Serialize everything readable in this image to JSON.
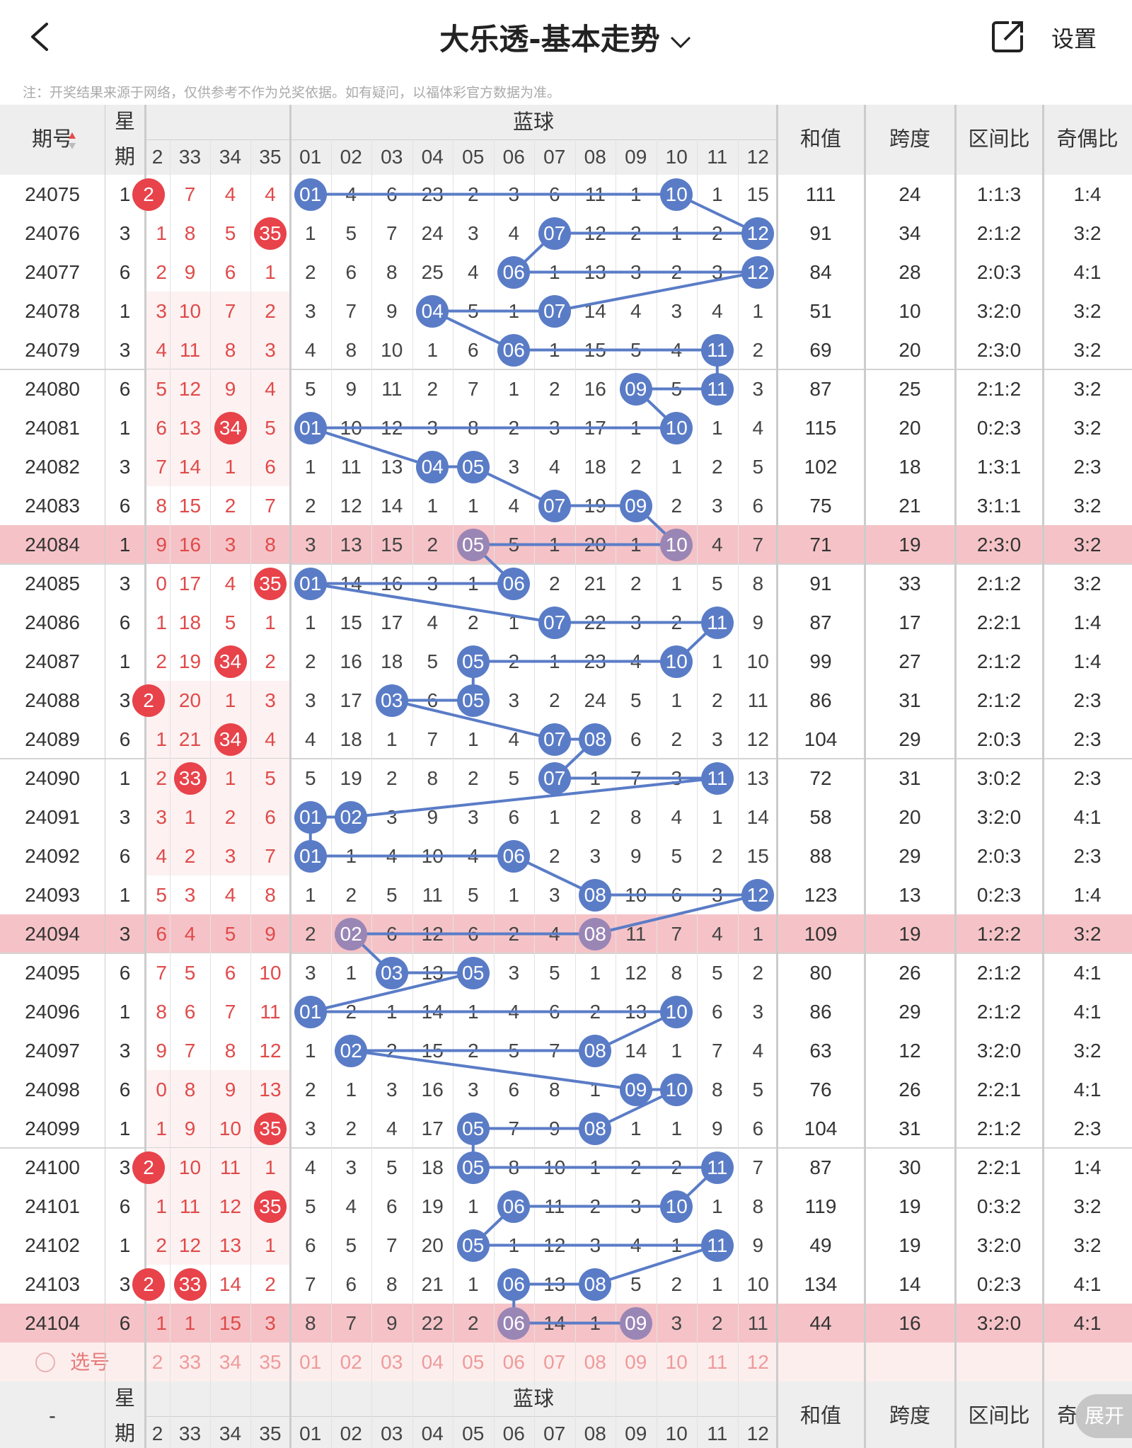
{
  "header": {
    "title": "大乐透-基本走势",
    "settings": "设置"
  },
  "notice": "注：开奖结果来源于网络，仅供参考不作为兑奖依据。如有疑问，以福体彩官方数据为准。",
  "columns": {
    "period": "期号",
    "week_top": "星",
    "week_bottom": "期",
    "blue": "蓝球",
    "sum": "和值",
    "span": "跨度",
    "zone": "区间比",
    "oddeven": "奇偶比",
    "oddeven_short": "奇",
    "front_nums": [
      "2",
      "33",
      "34",
      "35"
    ],
    "blue_nums": [
      "01",
      "02",
      "03",
      "04",
      "05",
      "06",
      "07",
      "08",
      "09",
      "10",
      "11",
      "12"
    ],
    "footer_period": "-"
  },
  "select_label": "选号",
  "expand_label": "展开",
  "colors": {
    "blue_ball": "#5a7cc7",
    "red_ball": "#e8424a",
    "red_text": "#e04a4a",
    "highlight_row": "#f5c3c7",
    "header_bg": "#eeeeee"
  },
  "rows": [
    {
      "p": "24075",
      "w": "1",
      "f": [
        "2",
        "7",
        "4",
        "4"
      ],
      "fh": [
        0
      ],
      "b": [
        "01",
        "4",
        "6",
        "23",
        "2",
        "3",
        "6",
        "11",
        "1",
        "10",
        "1",
        "15"
      ],
      "bh": [
        0,
        9
      ],
      "s": "111",
      "sp": "24",
      "z": "1:1:3",
      "o": "1:4"
    },
    {
      "p": "24076",
      "w": "3",
      "f": [
        "1",
        "8",
        "5",
        "35"
      ],
      "fh": [
        3
      ],
      "b": [
        "1",
        "5",
        "7",
        "24",
        "3",
        "4",
        "07",
        "12",
        "2",
        "1",
        "2",
        "12"
      ],
      "bh": [
        6,
        11
      ],
      "s": "91",
      "sp": "34",
      "z": "2:1:2",
      "o": "3:2"
    },
    {
      "p": "24077",
      "w": "6",
      "f": [
        "2",
        "9",
        "6",
        "1"
      ],
      "fh": [],
      "b": [
        "2",
        "6",
        "8",
        "25",
        "4",
        "06",
        "1",
        "13",
        "3",
        "2",
        "3",
        "12"
      ],
      "bh": [
        5,
        11
      ],
      "s": "84",
      "sp": "28",
      "z": "2:0:3",
      "o": "4:1"
    },
    {
      "p": "24078",
      "w": "1",
      "f": [
        "3",
        "10",
        "7",
        "2"
      ],
      "fh": [],
      "b": [
        "3",
        "7",
        "9",
        "04",
        "5",
        "1",
        "07",
        "14",
        "4",
        "3",
        "4",
        "1"
      ],
      "bh": [
        3,
        6
      ],
      "s": "51",
      "sp": "10",
      "z": "3:2:0",
      "o": "3:2"
    },
    {
      "p": "24079",
      "w": "3",
      "f": [
        "4",
        "11",
        "8",
        "3"
      ],
      "fh": [],
      "b": [
        "4",
        "8",
        "10",
        "1",
        "6",
        "06",
        "1",
        "15",
        "5",
        "4",
        "11",
        "2"
      ],
      "bh": [
        5,
        10
      ],
      "s": "69",
      "sp": "20",
      "z": "2:3:0",
      "o": "3:2"
    },
    {
      "p": "24080",
      "w": "6",
      "f": [
        "5",
        "12",
        "9",
        "4"
      ],
      "fh": [],
      "b": [
        "5",
        "9",
        "11",
        "2",
        "7",
        "1",
        "2",
        "16",
        "09",
        "5",
        "11",
        "3"
      ],
      "bh": [
        8,
        10
      ],
      "s": "87",
      "sp": "25",
      "z": "2:1:2",
      "o": "3:2"
    },
    {
      "p": "24081",
      "w": "1",
      "f": [
        "6",
        "13",
        "34",
        "5"
      ],
      "fh": [
        2
      ],
      "b": [
        "01",
        "10",
        "12",
        "3",
        "8",
        "2",
        "3",
        "17",
        "1",
        "10",
        "1",
        "4"
      ],
      "bh": [
        0,
        9
      ],
      "s": "115",
      "sp": "20",
      "z": "0:2:3",
      "o": "3:2"
    },
    {
      "p": "24082",
      "w": "3",
      "f": [
        "7",
        "14",
        "1",
        "6"
      ],
      "fh": [],
      "b": [
        "1",
        "11",
        "13",
        "04",
        "05",
        "3",
        "4",
        "18",
        "2",
        "1",
        "2",
        "5"
      ],
      "bh": [
        3,
        4
      ],
      "s": "102",
      "sp": "18",
      "z": "1:3:1",
      "o": "2:3"
    },
    {
      "p": "24083",
      "w": "6",
      "f": [
        "8",
        "15",
        "2",
        "7"
      ],
      "fh": [],
      "b": [
        "2",
        "12",
        "14",
        "1",
        "1",
        "4",
        "07",
        "19",
        "09",
        "2",
        "3",
        "6"
      ],
      "bh": [
        6,
        8
      ],
      "s": "75",
      "sp": "21",
      "z": "3:1:1",
      "o": "3:2"
    },
    {
      "p": "24084",
      "w": "1",
      "f": [
        "9",
        "16",
        "3",
        "8"
      ],
      "fh": [],
      "b": [
        "3",
        "13",
        "15",
        "2",
        "05",
        "5",
        "1",
        "20",
        "1",
        "10",
        "4",
        "7"
      ],
      "bh": [
        4,
        9
      ],
      "s": "71",
      "sp": "19",
      "z": "2:3:0",
      "o": "3:2"
    },
    {
      "p": "24085",
      "w": "3",
      "f": [
        "0",
        "17",
        "4",
        "35"
      ],
      "fh": [
        3
      ],
      "b": [
        "01",
        "14",
        "16",
        "3",
        "1",
        "06",
        "2",
        "21",
        "2",
        "1",
        "5",
        "8"
      ],
      "bh": [
        0,
        5
      ],
      "s": "91",
      "sp": "33",
      "z": "2:1:2",
      "o": "3:2"
    },
    {
      "p": "24086",
      "w": "6",
      "f": [
        "1",
        "18",
        "5",
        "1"
      ],
      "fh": [],
      "b": [
        "1",
        "15",
        "17",
        "4",
        "2",
        "1",
        "07",
        "22",
        "3",
        "2",
        "11",
        "9"
      ],
      "bh": [
        6,
        10
      ],
      "s": "87",
      "sp": "17",
      "z": "2:2:1",
      "o": "1:4"
    },
    {
      "p": "24087",
      "w": "1",
      "f": [
        "2",
        "19",
        "34",
        "2"
      ],
      "fh": [
        2
      ],
      "b": [
        "2",
        "16",
        "18",
        "5",
        "05",
        "2",
        "1",
        "23",
        "4",
        "10",
        "1",
        "10"
      ],
      "bh": [
        4,
        9
      ],
      "s": "99",
      "sp": "27",
      "z": "2:1:2",
      "o": "1:4"
    },
    {
      "p": "24088",
      "w": "3",
      "f": [
        "2",
        "20",
        "1",
        "3"
      ],
      "fh": [
        0
      ],
      "b": [
        "3",
        "17",
        "03",
        "6",
        "05",
        "3",
        "2",
        "24",
        "5",
        "1",
        "2",
        "11"
      ],
      "bh": [
        2,
        4
      ],
      "s": "86",
      "sp": "31",
      "z": "2:1:2",
      "o": "2:3"
    },
    {
      "p": "24089",
      "w": "6",
      "f": [
        "1",
        "21",
        "34",
        "4"
      ],
      "fh": [
        2
      ],
      "b": [
        "4",
        "18",
        "1",
        "7",
        "1",
        "4",
        "07",
        "08",
        "6",
        "2",
        "3",
        "12"
      ],
      "bh": [
        6,
        7
      ],
      "s": "104",
      "sp": "29",
      "z": "2:0:3",
      "o": "2:3"
    },
    {
      "p": "24090",
      "w": "1",
      "f": [
        "2",
        "33",
        "1",
        "5"
      ],
      "fh": [
        1
      ],
      "b": [
        "5",
        "19",
        "2",
        "8",
        "2",
        "5",
        "07",
        "1",
        "7",
        "3",
        "11",
        "13"
      ],
      "bh": [
        6,
        10
      ],
      "s": "72",
      "sp": "31",
      "z": "3:0:2",
      "o": "2:3"
    },
    {
      "p": "24091",
      "w": "3",
      "f": [
        "3",
        "1",
        "2",
        "6"
      ],
      "fh": [],
      "b": [
        "01",
        "02",
        "3",
        "9",
        "3",
        "6",
        "1",
        "2",
        "8",
        "4",
        "1",
        "14"
      ],
      "bh": [
        0,
        1
      ],
      "s": "58",
      "sp": "20",
      "z": "3:2:0",
      "o": "4:1"
    },
    {
      "p": "24092",
      "w": "6",
      "f": [
        "4",
        "2",
        "3",
        "7"
      ],
      "fh": [],
      "b": [
        "01",
        "1",
        "4",
        "10",
        "4",
        "06",
        "2",
        "3",
        "9",
        "5",
        "2",
        "15"
      ],
      "bh": [
        0,
        5
      ],
      "s": "88",
      "sp": "29",
      "z": "2:0:3",
      "o": "2:3"
    },
    {
      "p": "24093",
      "w": "1",
      "f": [
        "5",
        "3",
        "4",
        "8"
      ],
      "fh": [],
      "b": [
        "1",
        "2",
        "5",
        "11",
        "5",
        "1",
        "3",
        "08",
        "10",
        "6",
        "3",
        "12"
      ],
      "bh": [
        7,
        11
      ],
      "s": "123",
      "sp": "13",
      "z": "0:2:3",
      "o": "1:4"
    },
    {
      "p": "24094",
      "w": "3",
      "f": [
        "6",
        "4",
        "5",
        "9"
      ],
      "fh": [],
      "b": [
        "2",
        "02",
        "6",
        "12",
        "6",
        "2",
        "4",
        "08",
        "11",
        "7",
        "4",
        "1"
      ],
      "bh": [
        1,
        7
      ],
      "s": "109",
      "sp": "19",
      "z": "1:2:2",
      "o": "3:2"
    },
    {
      "p": "24095",
      "w": "6",
      "f": [
        "7",
        "5",
        "6",
        "10"
      ],
      "fh": [],
      "b": [
        "3",
        "1",
        "03",
        "13",
        "05",
        "3",
        "5",
        "1",
        "12",
        "8",
        "5",
        "2"
      ],
      "bh": [
        2,
        4
      ],
      "s": "80",
      "sp": "26",
      "z": "2:1:2",
      "o": "4:1"
    },
    {
      "p": "24096",
      "w": "1",
      "f": [
        "8",
        "6",
        "7",
        "11"
      ],
      "fh": [],
      "b": [
        "01",
        "2",
        "1",
        "14",
        "1",
        "4",
        "6",
        "2",
        "13",
        "10",
        "6",
        "3"
      ],
      "bh": [
        0,
        9
      ],
      "s": "86",
      "sp": "29",
      "z": "2:1:2",
      "o": "4:1"
    },
    {
      "p": "24097",
      "w": "3",
      "f": [
        "9",
        "7",
        "8",
        "12"
      ],
      "fh": [],
      "b": [
        "1",
        "02",
        "2",
        "15",
        "2",
        "5",
        "7",
        "08",
        "14",
        "1",
        "7",
        "4"
      ],
      "bh": [
        1,
        7
      ],
      "s": "63",
      "sp": "12",
      "z": "3:2:0",
      "o": "3:2"
    },
    {
      "p": "24098",
      "w": "6",
      "f": [
        "0",
        "8",
        "9",
        "13"
      ],
      "fh": [],
      "b": [
        "2",
        "1",
        "3",
        "16",
        "3",
        "6",
        "8",
        "1",
        "09",
        "10",
        "8",
        "5"
      ],
      "bh": [
        8,
        9
      ],
      "s": "76",
      "sp": "26",
      "z": "2:2:1",
      "o": "4:1"
    },
    {
      "p": "24099",
      "w": "1",
      "f": [
        "1",
        "9",
        "10",
        "35"
      ],
      "fh": [
        3
      ],
      "b": [
        "3",
        "2",
        "4",
        "17",
        "05",
        "7",
        "9",
        "08",
        "1",
        "1",
        "9",
        "6"
      ],
      "bh": [
        4,
        7
      ],
      "s": "104",
      "sp": "31",
      "z": "2:1:2",
      "o": "2:3"
    },
    {
      "p": "24100",
      "w": "3",
      "f": [
        "2",
        "10",
        "11",
        "1"
      ],
      "fh": [
        0
      ],
      "b": [
        "4",
        "3",
        "5",
        "18",
        "05",
        "8",
        "10",
        "1",
        "2",
        "2",
        "11",
        "7"
      ],
      "bh": [
        4,
        10
      ],
      "s": "87",
      "sp": "30",
      "z": "2:2:1",
      "o": "1:4"
    },
    {
      "p": "24101",
      "w": "6",
      "f": [
        "1",
        "11",
        "12",
        "35"
      ],
      "fh": [
        3
      ],
      "b": [
        "5",
        "4",
        "6",
        "19",
        "1",
        "06",
        "11",
        "2",
        "3",
        "10",
        "1",
        "8"
      ],
      "bh": [
        5,
        9
      ],
      "s": "119",
      "sp": "19",
      "z": "0:3:2",
      "o": "3:2"
    },
    {
      "p": "24102",
      "w": "1",
      "f": [
        "2",
        "12",
        "13",
        "1"
      ],
      "fh": [],
      "b": [
        "6",
        "5",
        "7",
        "20",
        "05",
        "1",
        "12",
        "3",
        "4",
        "1",
        "11",
        "9"
      ],
      "bh": [
        4,
        10
      ],
      "s": "49",
      "sp": "19",
      "z": "3:2:0",
      "o": "3:2"
    },
    {
      "p": "24103",
      "w": "3",
      "f": [
        "2",
        "33",
        "14",
        "2"
      ],
      "fh": [
        0,
        1
      ],
      "b": [
        "7",
        "6",
        "8",
        "21",
        "1",
        "06",
        "13",
        "08",
        "5",
        "2",
        "1",
        "10"
      ],
      "bh": [
        5,
        7
      ],
      "s": "134",
      "sp": "14",
      "z": "0:2:3",
      "o": "4:1"
    },
    {
      "p": "24104",
      "w": "6",
      "f": [
        "1",
        "1",
        "15",
        "3"
      ],
      "fh": [],
      "b": [
        "8",
        "7",
        "9",
        "22",
        "2",
        "06",
        "14",
        "1",
        "09",
        "3",
        "2",
        "11"
      ],
      "bh": [
        5,
        8
      ],
      "s": "44",
      "sp": "16",
      "z": "3:2:0",
      "o": "4:1"
    }
  ],
  "highlight_periods": [
    "24084",
    "24094",
    "24104"
  ]
}
